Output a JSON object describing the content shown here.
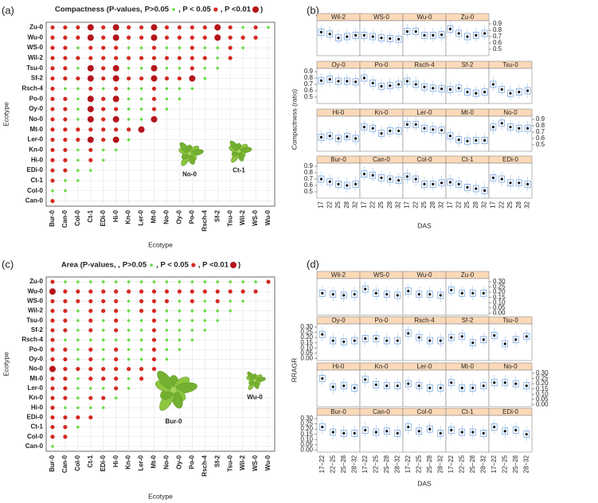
{
  "chart_data": [
    {
      "type": "dotmatrix",
      "label": "(a)",
      "title": "Compactness (P-values,",
      "levels": [
        {
          "label": "P>0.05",
          "color": "#66dd44"
        },
        {
          "label": ", P < 0.05",
          "color": "#d42a22"
        },
        {
          "label": ", P <0.01",
          "color": "#b3151a"
        }
      ],
      "title_end": ")",
      "xlabel": "Ecotype",
      "ylabel": "Ecotype",
      "grid": true,
      "rows": [
        "Zu-0",
        "Wu-0",
        "WS-0",
        "Wil-2",
        "Tsu-0",
        "Sf-2",
        "Rsch-4",
        "Po-0",
        "Oy-0",
        "No-0",
        "Mt-0",
        "Ler-0",
        "Kn-0",
        "Hi-0",
        "EDi-0",
        "Ct-1",
        "Col-0",
        "Can-0"
      ],
      "columns": [
        "Bur-0",
        "Can-0",
        "Col-0",
        "Ct-1",
        "EDi-0",
        "Hi-0",
        "Kn-0",
        "Ler-0",
        "Mt-0",
        "No-0",
        "Oy-0",
        "Po-0",
        "Rsch-4",
        "Sf-2",
        "Tsu-0",
        "Wil-2",
        "WS-0",
        "Wu-0"
      ],
      "matrix": [
        [
          1,
          1,
          1,
          2,
          1,
          2,
          1,
          1,
          2,
          1,
          1,
          1,
          1,
          2,
          1,
          0,
          1,
          0
        ],
        [
          1,
          1,
          1,
          2,
          1,
          2,
          1,
          1,
          2,
          1,
          1,
          1,
          1,
          2,
          1,
          1,
          1
        ],
        [
          1,
          1,
          0,
          1,
          1,
          1,
          0,
          0,
          1,
          0,
          0,
          1,
          0,
          0,
          1,
          0
        ],
        [
          1,
          1,
          1,
          1,
          1,
          1,
          1,
          1,
          1,
          1,
          1,
          1,
          1,
          0,
          1
        ],
        [
          1,
          1,
          0,
          2,
          1,
          2,
          0,
          0,
          2,
          0,
          0,
          1,
          0,
          0
        ],
        [
          1,
          1,
          1,
          2,
          1,
          2,
          1,
          1,
          2,
          1,
          1,
          2,
          0
        ],
        [
          1,
          0,
          0,
          1,
          0,
          1,
          0,
          0,
          1,
          0,
          0,
          0
        ],
        [
          1,
          1,
          0,
          2,
          1,
          2,
          0,
          0,
          1,
          0,
          0
        ],
        [
          1,
          1,
          0,
          2,
          1,
          1,
          0,
          0,
          1,
          0
        ],
        [
          1,
          1,
          0,
          2,
          1,
          2,
          0,
          0,
          2
        ],
        [
          1,
          1,
          1,
          1,
          1,
          1,
          1,
          2
        ],
        [
          1,
          1,
          1,
          2,
          1,
          2,
          0
        ],
        [
          1,
          1,
          0,
          1,
          0,
          0
        ],
        [
          1,
          1,
          0,
          1,
          0
        ],
        [
          1,
          1,
          0,
          0
        ],
        [
          1,
          0,
          0
        ],
        [
          0,
          0
        ],
        [
          1
        ]
      ],
      "photo_labels": [
        "No-0",
        "Ct-1"
      ]
    },
    {
      "type": "lattice-box",
      "label": "(b)",
      "ylabel": "Compactness (ratio)",
      "xlabel": "DAS",
      "categories": [
        "17",
        "22",
        "25",
        "28",
        "32"
      ],
      "ylim": [
        0.4,
        0.95
      ],
      "yticks": [
        0.5,
        0.6,
        0.7,
        0.8,
        0.9
      ],
      "color": "#6b9fdc",
      "strip_color": "#fbd9b8",
      "panels": [
        {
          "name": "Wil-2",
          "values": [
            0.77,
            0.74,
            0.68,
            0.7,
            0.72
          ]
        },
        {
          "name": "WS-0",
          "values": [
            0.72,
            0.7,
            0.68,
            0.67,
            0.66
          ]
        },
        {
          "name": "Wu-0",
          "values": [
            0.78,
            0.78,
            0.72,
            0.72,
            0.73
          ]
        },
        {
          "name": "Zu-0",
          "values": [
            0.82,
            0.75,
            0.7,
            0.72,
            0.75
          ]
        },
        {
          "name": "Oy-0",
          "values": [
            0.76,
            0.78,
            0.75,
            0.75,
            0.74
          ]
        },
        {
          "name": "Po-0",
          "values": [
            0.8,
            0.72,
            0.67,
            0.68,
            0.7
          ]
        },
        {
          "name": "Rsch-4",
          "values": [
            0.75,
            0.7,
            0.66,
            0.64,
            0.63
          ]
        },
        {
          "name": "Sf-2",
          "values": [
            0.62,
            0.64,
            0.58,
            0.56,
            0.58
          ]
        },
        {
          "name": "Tsu-0",
          "values": [
            0.7,
            0.62,
            0.56,
            0.58,
            0.6
          ]
        },
        {
          "name": "Hi-0",
          "values": [
            0.62,
            0.64,
            0.6,
            0.63,
            0.6
          ]
        },
        {
          "name": "Kn-0",
          "values": [
            0.78,
            0.76,
            0.68,
            0.72,
            0.72
          ]
        },
        {
          "name": "Ler-0",
          "values": [
            0.82,
            0.82,
            0.76,
            0.74,
            0.73
          ]
        },
        {
          "name": "Mt-0",
          "values": [
            0.64,
            0.58,
            0.56,
            0.57,
            0.57
          ]
        },
        {
          "name": "No-0",
          "values": [
            0.78,
            0.84,
            0.78,
            0.76,
            0.76
          ]
        },
        {
          "name": "Bur-0",
          "values": [
            0.7,
            0.66,
            0.62,
            0.6,
            0.62
          ]
        },
        {
          "name": "Can-0",
          "values": [
            0.78,
            0.76,
            0.72,
            0.7,
            0.68
          ]
        },
        {
          "name": "Col-0",
          "values": [
            0.74,
            0.7,
            0.62,
            0.62,
            0.64
          ]
        },
        {
          "name": "Ct-1",
          "values": [
            0.65,
            0.62,
            0.57,
            0.55,
            0.52
          ]
        },
        {
          "name": "EDi-0",
          "values": [
            0.72,
            0.7,
            0.64,
            0.64,
            0.62
          ]
        }
      ]
    },
    {
      "type": "dotmatrix",
      "label": "(c)",
      "title": "Area (P-values, ,",
      "levels": [
        {
          "label": "P>0.05",
          "color": "#66dd44"
        },
        {
          "label": ", P < 0.05",
          "color": "#d42a22"
        },
        {
          "label": ", P <0.01",
          "color": "#b3151a"
        }
      ],
      "title_end": ")",
      "xlabel": "Ecotype",
      "ylabel": "Ecotype",
      "grid": true,
      "rows": [
        "Zu-0",
        "Wu-0",
        "WS-0",
        "Wil-2",
        "Tsu-0",
        "Sf-2",
        "Rsch-4",
        "Po-0",
        "Oy-0",
        "No-0",
        "Mt-0",
        "Ler-0",
        "Kn-0",
        "Hi-0",
        "EDi-0",
        "Ct-1",
        "Col-0",
        "Can-0"
      ],
      "columns": [
        "Bur-0",
        "Can-0",
        "Col-0",
        "Ct-1",
        "EDi-0",
        "Hi-0",
        "Kn-0",
        "Ler-0",
        "Mt-0",
        "No-0",
        "Oy-0",
        "Po-0",
        "Rsch-4",
        "Sf-2",
        "Tsu-0",
        "Wil-2",
        "WS-0",
        "Wu-0"
      ],
      "matrix": [
        [
          1,
          0,
          0,
          0,
          0,
          0,
          0,
          0,
          0,
          0,
          0,
          0,
          0,
          0,
          0,
          0,
          0,
          1
        ],
        [
          2,
          1,
          1,
          1,
          1,
          1,
          1,
          1,
          1,
          1,
          1,
          1,
          1,
          1,
          1,
          1,
          1
        ],
        [
          1,
          1,
          1,
          1,
          1,
          1,
          0,
          1,
          1,
          1,
          0,
          1,
          0,
          1,
          0,
          0
        ],
        [
          1,
          1,
          0,
          1,
          1,
          1,
          0,
          1,
          1,
          0,
          0,
          0,
          0,
          0,
          0
        ],
        [
          1,
          1,
          0,
          1,
          0,
          1,
          0,
          0,
          1,
          0,
          0,
          0,
          0,
          0
        ],
        [
          1,
          1,
          0,
          1,
          0,
          1,
          0,
          0,
          1,
          0,
          0,
          0,
          0
        ],
        [
          1,
          0,
          0,
          0,
          0,
          0,
          0,
          0,
          1,
          0,
          0,
          0
        ],
        [
          1,
          1,
          0,
          1,
          0,
          1,
          0,
          0,
          1,
          0,
          0
        ],
        [
          1,
          1,
          0,
          1,
          0,
          1,
          0,
          0,
          1,
          0
        ],
        [
          2,
          1,
          1,
          1,
          1,
          1,
          1,
          1,
          1
        ],
        [
          1,
          1,
          0,
          1,
          1,
          1,
          0,
          1
        ],
        [
          1,
          1,
          0,
          0,
          0,
          1,
          0
        ],
        [
          1,
          1,
          0,
          1,
          1,
          0
        ],
        [
          1,
          0,
          0,
          0,
          0
        ],
        [
          1,
          1,
          1,
          1
        ],
        [
          1,
          1,
          0
        ],
        [
          1,
          1
        ],
        [
          0
        ]
      ],
      "photo_labels": [
        "Bur-0",
        "Wu-0"
      ]
    },
    {
      "type": "lattice-box",
      "label": "(d)",
      "ylabel": "RRAGR",
      "xlabel": "DAS",
      "categories": [
        "17−22",
        "22−25",
        "25−28",
        "28−32"
      ],
      "ylim": [
        -0.02,
        0.33
      ],
      "yticks": [
        {
          "value": 0,
          "label": "0.00"
        },
        {
          "value": 0.05,
          "label": "0.05"
        },
        {
          "value": 0.1,
          "label": "0.10"
        },
        {
          "value": 0.15,
          "label": "0.15"
        },
        {
          "value": 0.2,
          "label": "0.20"
        },
        {
          "value": 0.25,
          "label": "0.25"
        },
        {
          "value": 0.3,
          "label": "0.30"
        }
      ],
      "color": "#6b9fdc",
      "strip_color": "#fbd9b8",
      "panels": [
        {
          "name": "Wil-2",
          "values": [
            0.19,
            0.18,
            0.17,
            0.18
          ]
        },
        {
          "name": "WS-0",
          "values": [
            0.23,
            0.19,
            0.18,
            0.17
          ]
        },
        {
          "name": "Wu-0",
          "values": [
            0.21,
            0.18,
            0.18,
            0.17
          ]
        },
        {
          "name": "Zu-0",
          "values": [
            0.22,
            0.19,
            0.19,
            0.19
          ]
        },
        {
          "name": "Oy-0",
          "values": [
            0.23,
            0.17,
            0.16,
            0.17
          ]
        },
        {
          "name": "Po-0",
          "values": [
            0.19,
            0.19,
            0.17,
            0.17
          ]
        },
        {
          "name": "Rsch-4",
          "values": [
            0.24,
            0.2,
            0.17,
            0.17
          ]
        },
        {
          "name": "Sf-2",
          "values": [
            0.2,
            0.21,
            0.15,
            0.18
          ]
        },
        {
          "name": "Tsu-0",
          "values": [
            0.22,
            0.14,
            0.18,
            0.21
          ]
        },
        {
          "name": "Hi-0",
          "values": [
            0.25,
            0.17,
            0.18,
            0.16
          ]
        },
        {
          "name": "Kn-0",
          "values": [
            0.24,
            0.19,
            0.18,
            0.18
          ]
        },
        {
          "name": "Ler-0",
          "values": [
            0.2,
            0.18,
            0.16,
            0.16
          ]
        },
        {
          "name": "Mt-0",
          "values": [
            0.21,
            0.16,
            0.16,
            0.18
          ]
        },
        {
          "name": "No-0",
          "values": [
            0.21,
            0.21,
            0.2,
            0.18
          ]
        },
        {
          "name": "Bur-0",
          "values": [
            0.22,
            0.17,
            0.16,
            0.16
          ]
        },
        {
          "name": "Can-0",
          "values": [
            0.19,
            0.17,
            0.18,
            0.16
          ]
        },
        {
          "name": "Col-0",
          "values": [
            0.22,
            0.18,
            0.2,
            0.16
          ]
        },
        {
          "name": "Ct-1",
          "values": [
            0.19,
            0.17,
            0.17,
            0.16
          ]
        },
        {
          "name": "EDi-0",
          "values": [
            0.22,
            0.18,
            0.19,
            0.15
          ]
        }
      ]
    }
  ]
}
